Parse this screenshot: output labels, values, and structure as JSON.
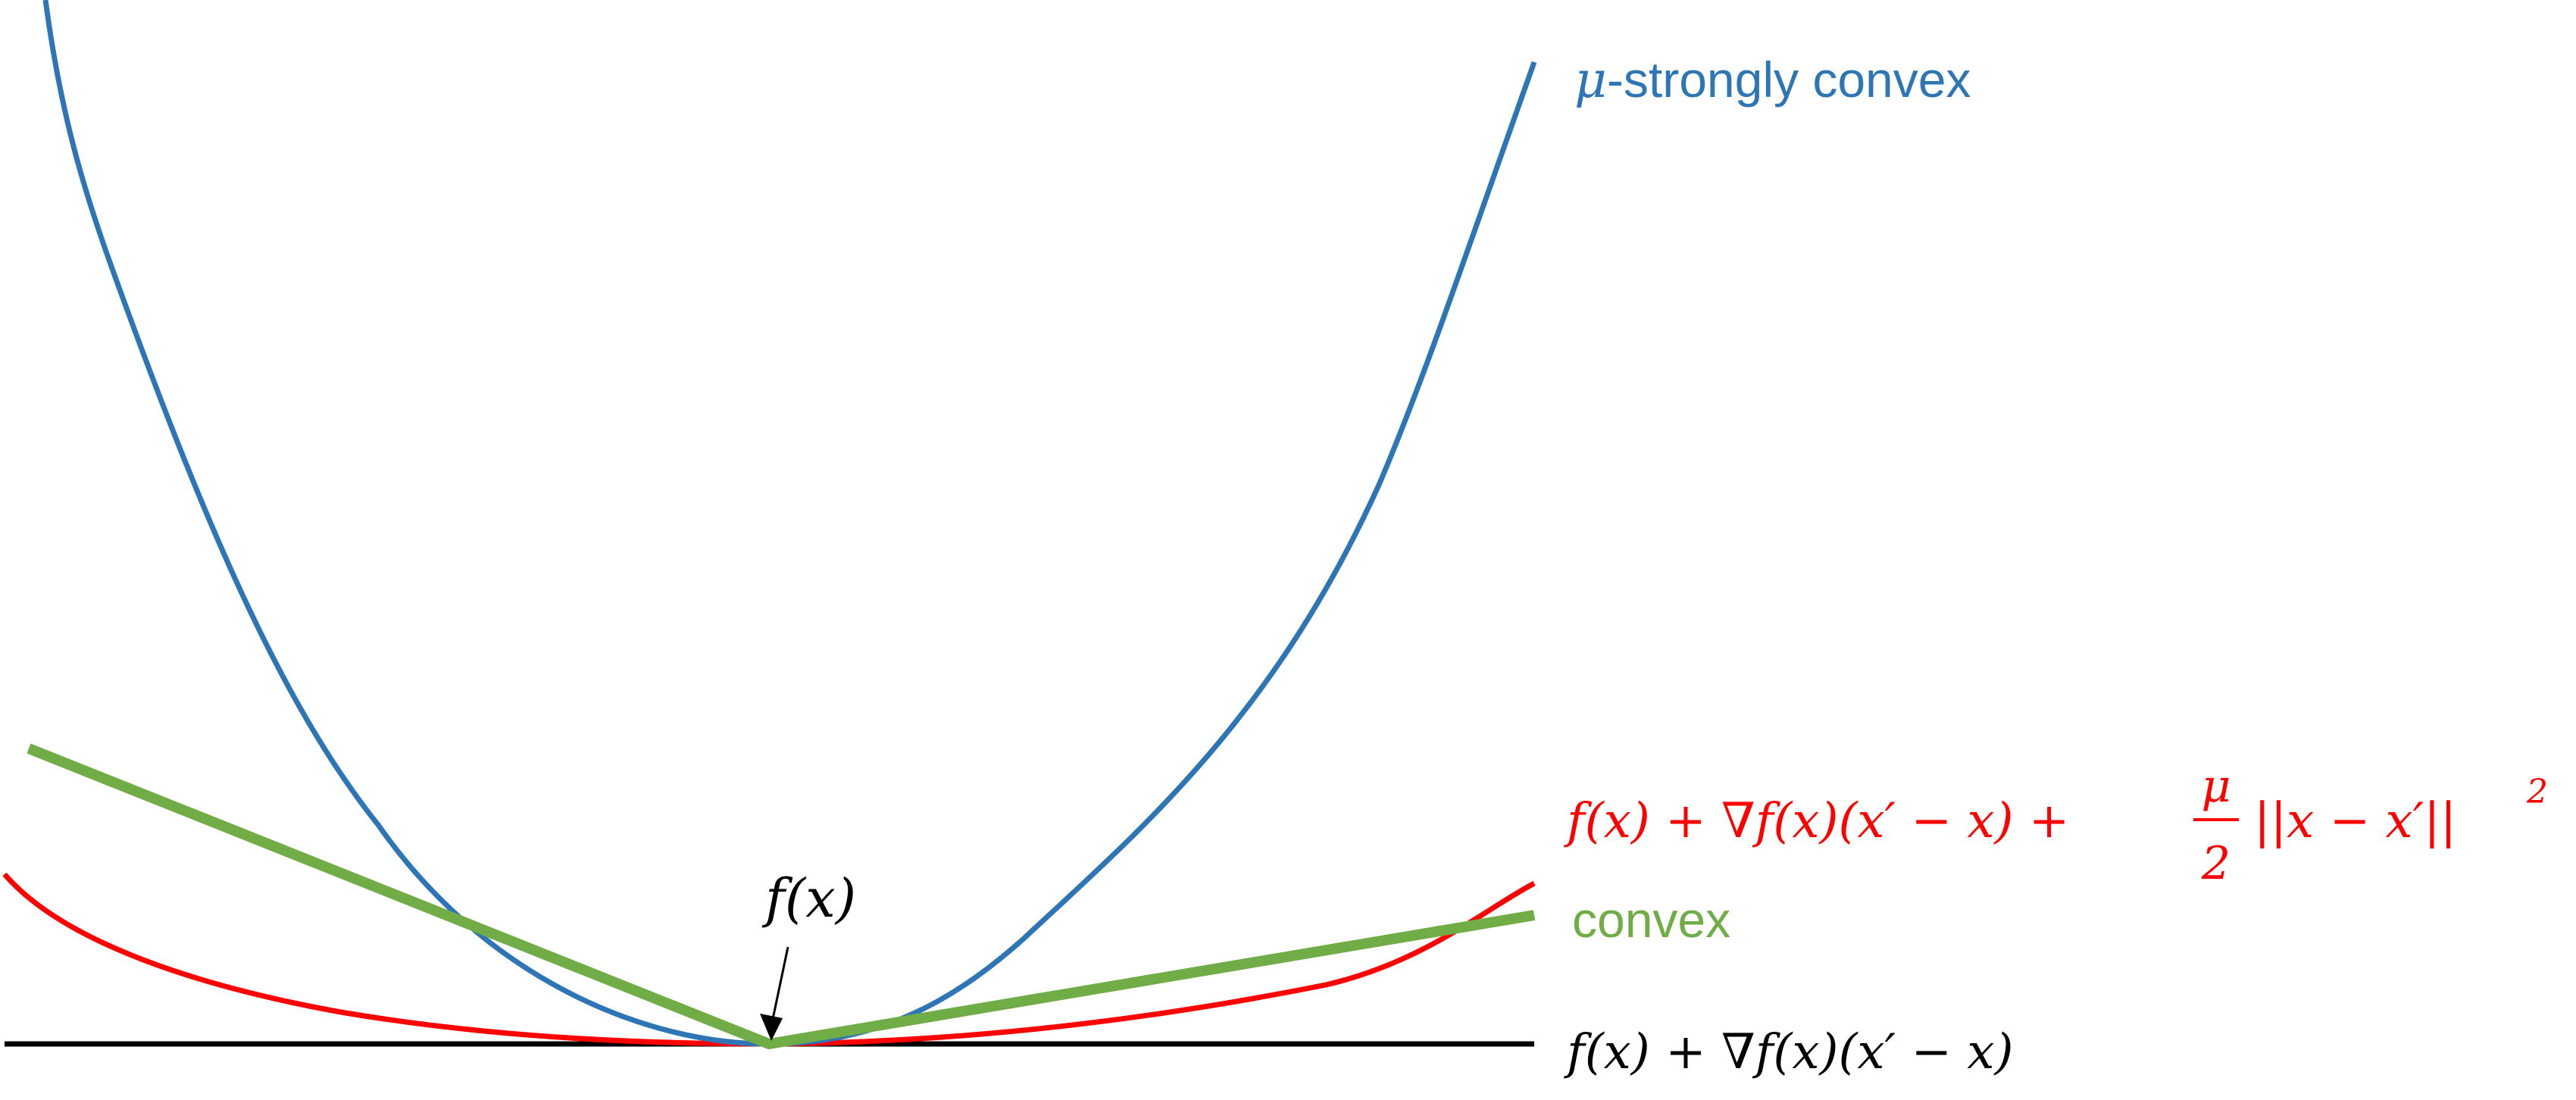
{
  "colors": {
    "strongly_convex": "#2E75B6",
    "convex": "#70AD47",
    "quadratic_lower_bound": "#FF0000",
    "linear_lower_bound": "#000000",
    "arrow": "#000000"
  },
  "labels": {
    "strongly_convex": {
      "mu": "μ",
      "rest": "-strongly convex"
    },
    "quadratic_bound": {
      "left": "f(x) + ∇f(x)(x′ − x) + ",
      "frac_num": "μ",
      "frac_den": "2",
      "right": "||x − x′||",
      "power": "2"
    },
    "convex": "convex",
    "linear_bound": "f(x) + ∇f(x)(x′ − x)",
    "point": "f(x)"
  }
}
